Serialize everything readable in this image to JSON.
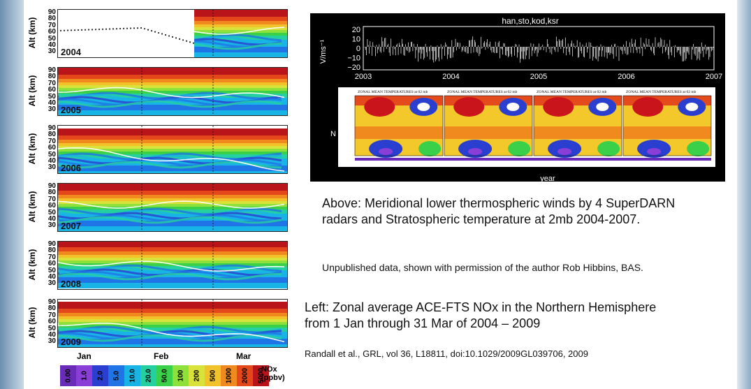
{
  "colors": {
    "background": "#ffffff",
    "panel_black": "#000000"
  },
  "chart_data": [
    {
      "type": "heatmap",
      "variable": "NOx",
      "ylabel": "Alt (km)",
      "yticks": [
        "90",
        "80",
        "70",
        "60",
        "50",
        "40",
        "30"
      ],
      "month_labels": [
        "Jan",
        "Feb",
        "Mar"
      ],
      "panels": [
        {
          "year": "2004"
        },
        {
          "year": "2005"
        },
        {
          "year": "2006"
        },
        {
          "year": "2007"
        },
        {
          "year": "2008"
        },
        {
          "year": "2009"
        }
      ],
      "colorbar": {
        "unit": "NOx",
        "unit2": "(ppbv)",
        "ticks": [
          "0.00",
          "1.0",
          "2.0",
          "5.0",
          "10.0",
          "20.0",
          "50.0",
          "100",
          "200",
          "500",
          "1000",
          "2000",
          "5000"
        ],
        "colors": [
          "#6a2bb8",
          "#8a3ed8",
          "#2a3fd0",
          "#1f74e6",
          "#19b4e6",
          "#25d0a0",
          "#3ad04a",
          "#8ee03a",
          "#d8e23a",
          "#f2c22a",
          "#f08a1e",
          "#e4481a",
          "#b8141a"
        ]
      }
    },
    {
      "type": "line",
      "title": "han,sto,kod,ksr",
      "ylabel": "V/ms⁻¹",
      "yticks": [
        "20",
        "10",
        "0",
        "−10",
        "−20"
      ],
      "xticks": [
        "2003",
        "2004",
        "2005",
        "2006",
        "2007"
      ],
      "ylim": [
        -25,
        25
      ]
    },
    {
      "type": "heatmap",
      "panel_titles": [
        "ZONAL MEAN TEMPERATURES at 02 mb",
        "ZONAL MEAN TEMPERATURES at 02 mb",
        "ZONAL MEAN TEMPERATURES at 02 mb",
        "ZONAL MEAN TEMPERATURES at 02 mb"
      ],
      "ylabel": "N",
      "xlabel": "year"
    }
  ],
  "text": {
    "above": "Above: Meridional lower thermospheric winds by 4 SuperDARN radars and Stratospheric temperature at 2mb 2004-2007.",
    "unpublished": "Unpublished data, shown with permission of the author Rob Hibbins, BAS.",
    "left": "Left: Zonal average ACE-FTS NOx  in the Northern Hemisphere from 1 Jan through 31 Mar of 2004 – 2009",
    "ref": "Randall et al., GRL, vol 36,  L18811, doi:10.1029/2009GL039706, 2009"
  }
}
